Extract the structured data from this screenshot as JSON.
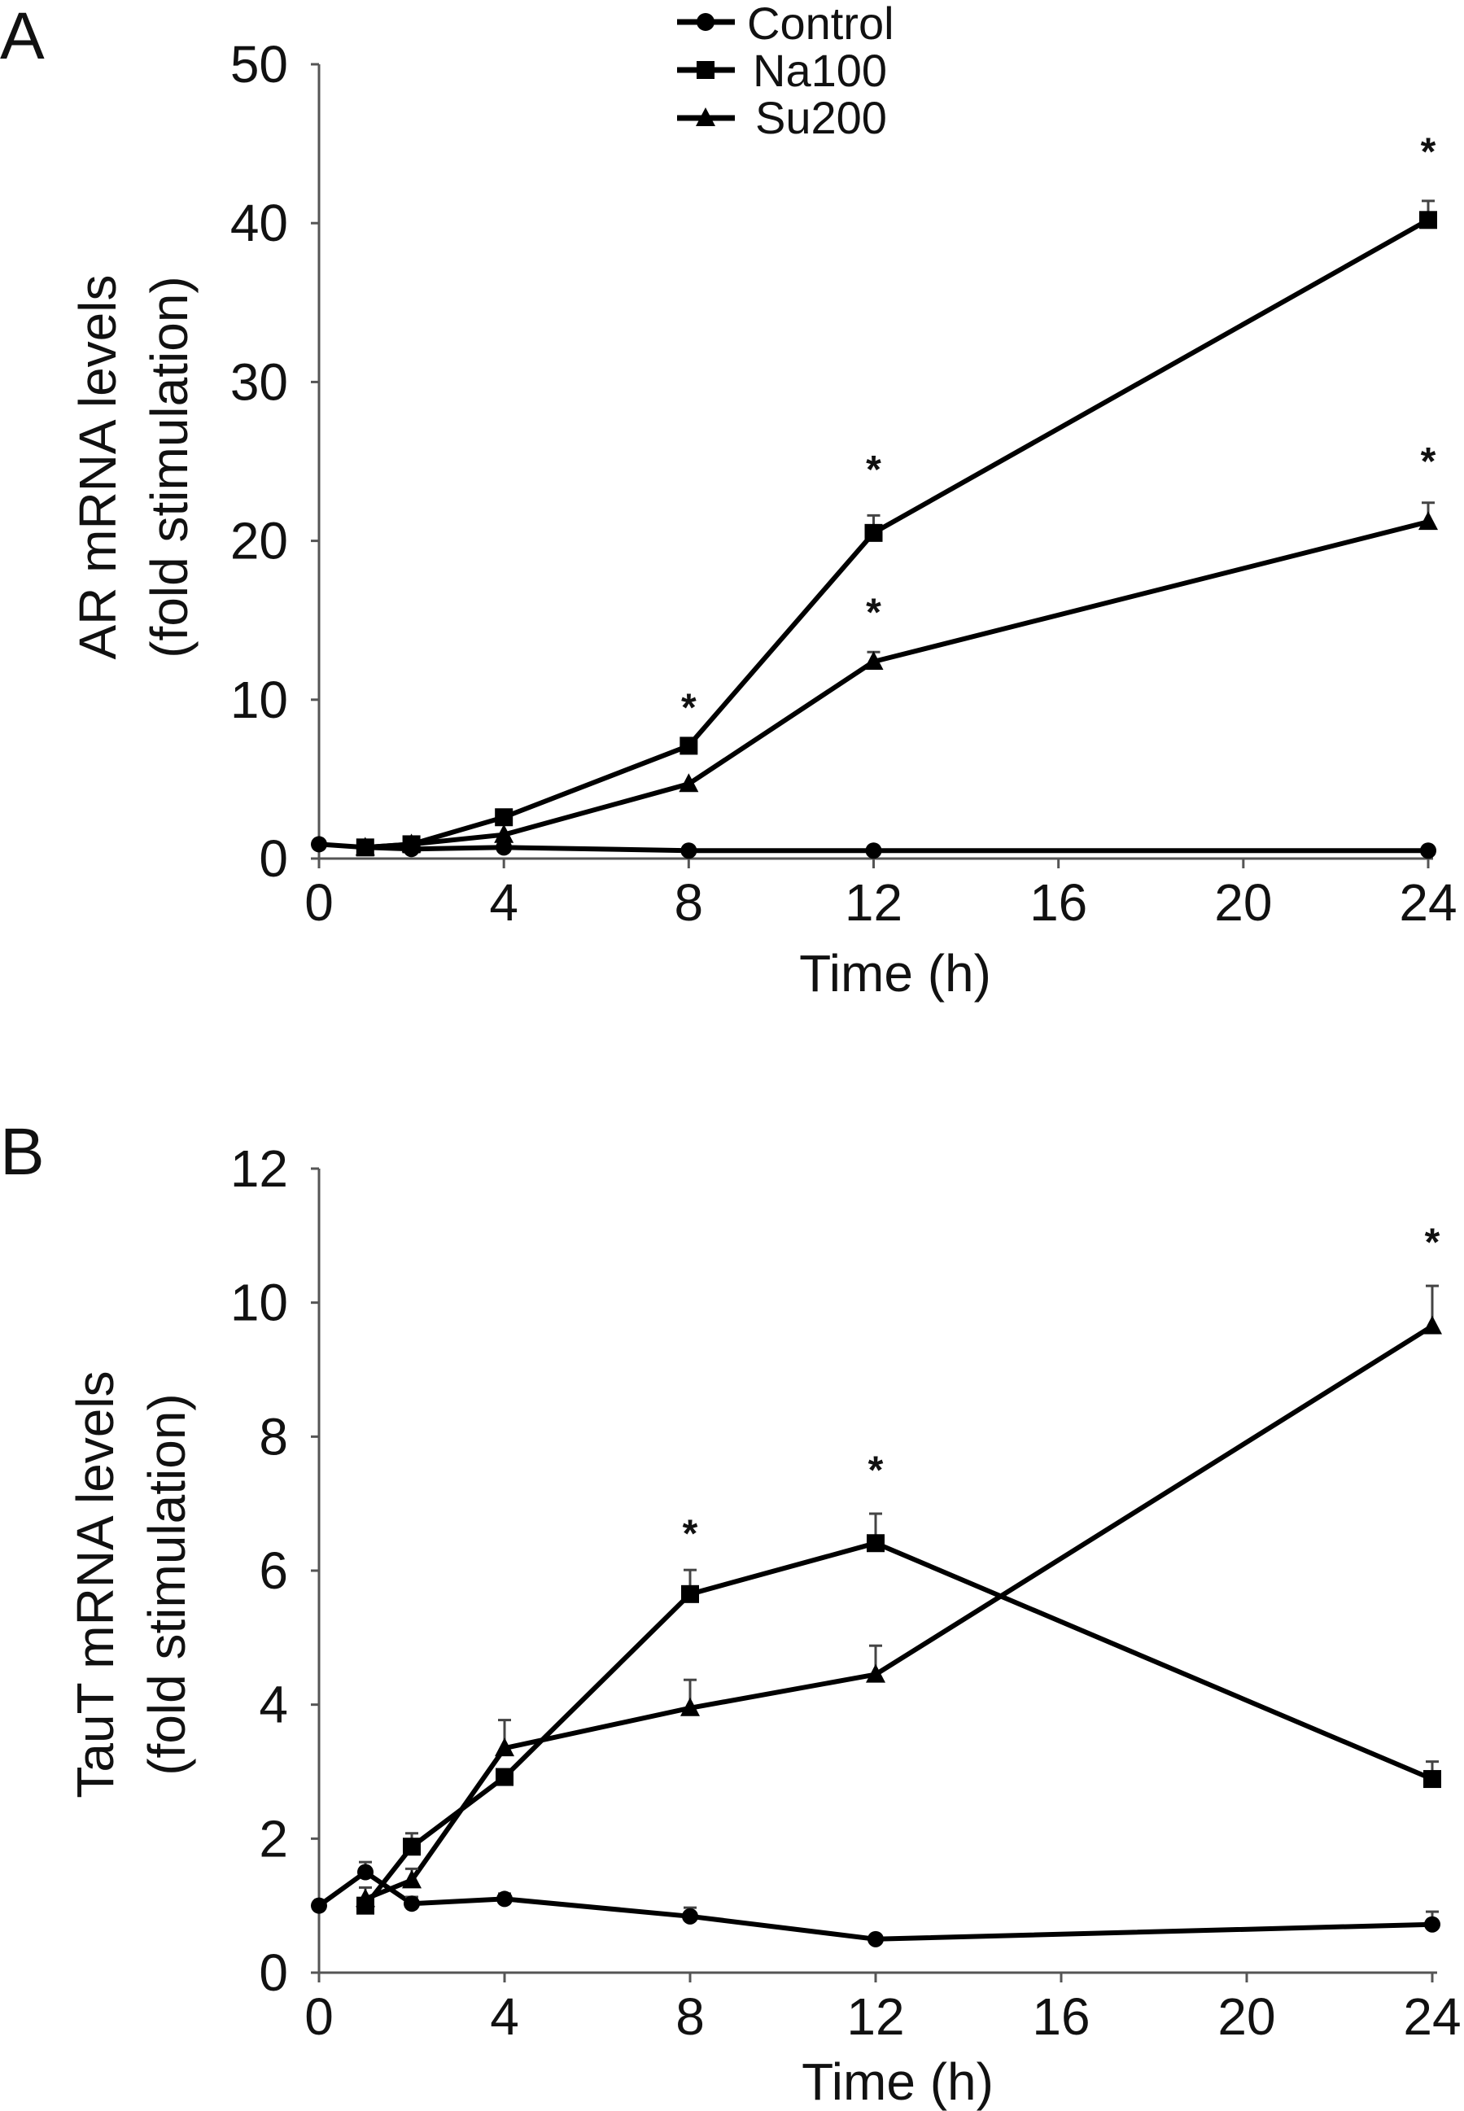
{
  "chart_data": [
    {
      "panel": "A",
      "type": "line",
      "title": "",
      "xlabel": "Time (h)",
      "ylabel_lines": [
        "AR mRNA levels",
        "(fold stimulation)"
      ],
      "xlim": [
        0,
        24
      ],
      "ylim": [
        0,
        50
      ],
      "xticks": [
        0,
        4,
        8,
        12,
        16,
        20,
        24
      ],
      "yticks": [
        0,
        10,
        20,
        30,
        40,
        50
      ],
      "grid": false,
      "legend": {
        "placement": "top-center",
        "entries": [
          "Control",
          "Na100",
          "Su200"
        ]
      },
      "series": [
        {
          "name": "Control",
          "marker": "circle",
          "x": [
            0,
            1,
            2,
            4,
            8,
            12,
            24
          ],
          "y": [
            0.9,
            0.7,
            0.6,
            0.7,
            0.5,
            0.5,
            0.5
          ],
          "err": [
            0,
            0,
            0,
            0,
            0,
            0,
            0
          ]
        },
        {
          "name": "Na100",
          "marker": "square",
          "x": [
            1,
            2,
            4,
            8,
            12,
            24
          ],
          "y": [
            0.7,
            0.9,
            2.6,
            7.1,
            20.5,
            40.2
          ],
          "err": [
            0,
            0,
            0,
            0,
            1.1,
            1.2
          ]
        },
        {
          "name": "Su200",
          "marker": "triangle",
          "x": [
            1,
            2,
            4,
            8,
            12,
            24
          ],
          "y": [
            0.7,
            0.9,
            1.5,
            4.7,
            12.4,
            21.2
          ],
          "err": [
            0,
            0,
            0,
            0,
            0.6,
            1.2
          ]
        }
      ],
      "annotations": [
        {
          "text": "*",
          "x": 8,
          "y": 9.5
        },
        {
          "text": "*",
          "x": 12,
          "y": 24.5
        },
        {
          "text": "*",
          "x": 12,
          "y": 15.5
        },
        {
          "text": "*",
          "x": 24,
          "y": 44.5
        },
        {
          "text": "*",
          "x": 24,
          "y": 25.0
        }
      ]
    },
    {
      "panel": "B",
      "type": "line",
      "title": "",
      "xlabel": "Time (h)",
      "ylabel_lines": [
        "TauT mRNA levels",
        "(fold stimulation)"
      ],
      "xlim": [
        0,
        24
      ],
      "ylim": [
        0,
        12
      ],
      "xticks": [
        0,
        4,
        8,
        12,
        16,
        20,
        24
      ],
      "yticks": [
        0,
        2,
        4,
        6,
        8,
        10,
        12
      ],
      "grid": false,
      "series": [
        {
          "name": "Control",
          "marker": "circle",
          "x": [
            0,
            1,
            2,
            4,
            8,
            12,
            24
          ],
          "y": [
            1.0,
            1.5,
            1.03,
            1.1,
            0.84,
            0.5,
            0.72
          ],
          "err": [
            0,
            0.15,
            0.1,
            0.08,
            0.13,
            0,
            0.19
          ]
        },
        {
          "name": "Na100",
          "marker": "square",
          "x": [
            1,
            2,
            4,
            8,
            12,
            24
          ],
          "y": [
            1.0,
            1.88,
            2.92,
            5.65,
            6.41,
            2.89
          ],
          "err": [
            0.27,
            0.2,
            0,
            0.36,
            0.44,
            0.26
          ]
        },
        {
          "name": "Su200",
          "marker": "triangle",
          "x": [
            1,
            2,
            4,
            8,
            12,
            24
          ],
          "y": [
            1.1,
            1.38,
            3.35,
            3.95,
            4.45,
            9.65
          ],
          "err": [
            0,
            0.17,
            0.42,
            0.42,
            0.43,
            0.6
          ]
        }
      ],
      "annotations": [
        {
          "text": "*",
          "x": 8,
          "y": 6.55
        },
        {
          "text": "*",
          "x": 12,
          "y": 7.5
        },
        {
          "text": "*",
          "x": 24,
          "y": 10.9
        }
      ]
    }
  ],
  "figure": {
    "panel_labels": [
      "A",
      "B"
    ],
    "legend_entries": [
      "Control",
      "Na100",
      "Su200"
    ]
  }
}
